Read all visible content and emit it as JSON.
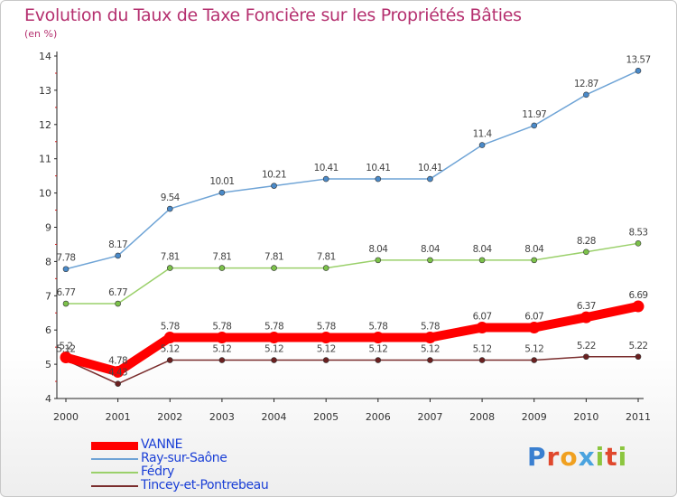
{
  "chart_data": {
    "type": "line",
    "title": "Evolution du Taux de Taxe Foncière sur les Propriétés Bâties",
    "subtitle": "(en %)",
    "xlabel": "",
    "ylabel": "",
    "x": [
      "2000",
      "2001",
      "2002",
      "2003",
      "2004",
      "2005",
      "2006",
      "2007",
      "2008",
      "2009",
      "2010",
      "2011"
    ],
    "ylim": [
      4,
      14
    ],
    "yticks": [
      4,
      5,
      6,
      7,
      8,
      9,
      10,
      11,
      12,
      13,
      14
    ],
    "grid": false,
    "legend_position": "bottom-left",
    "series": [
      {
        "name": "Ray-sur-Saône",
        "color": "#6fa4d6",
        "point_color": "#4a8ac9",
        "values": [
          7.78,
          8.17,
          9.54,
          10.01,
          10.21,
          10.41,
          10.41,
          10.41,
          11.4,
          11.97,
          12.87,
          13.57
        ],
        "labels": [
          "7.78",
          "8.17",
          "9.54",
          "10.01",
          "10.21",
          "10.41",
          "10.41",
          "10.41",
          "11.4",
          "11.97",
          "12.87",
          "13.57"
        ]
      },
      {
        "name": "Fédry",
        "color": "#9ad06a",
        "point_color": "#7cc24a",
        "values": [
          6.77,
          6.77,
          7.81,
          7.81,
          7.81,
          7.81,
          8.04,
          8.04,
          8.04,
          8.04,
          8.28,
          8.53
        ],
        "labels": [
          "6.77",
          "6.77",
          "7.81",
          "7.81",
          "7.81",
          "7.81",
          "8.04",
          "8.04",
          "8.04",
          "8.04",
          "8.28",
          "8.53"
        ]
      },
      {
        "name": "Tincey-et-Pontrebeau",
        "color": "#7a2d2d",
        "point_color": "#6b2020",
        "values": [
          5.12,
          4.43,
          5.12,
          5.12,
          5.12,
          5.12,
          5.12,
          5.12,
          5.12,
          5.12,
          5.22,
          5.22
        ],
        "labels": [
          "5.12",
          "4.43",
          "5.12",
          "5.12",
          "5.12",
          "5.12",
          "5.12",
          "5.12",
          "5.12",
          "5.12",
          "5.22",
          "5.22"
        ]
      },
      {
        "name": "VANNE",
        "color": "#ff0000",
        "point_color": "#ff0000",
        "thick": true,
        "values": [
          5.2,
          4.78,
          5.78,
          5.78,
          5.78,
          5.78,
          5.78,
          5.78,
          6.07,
          6.07,
          6.37,
          6.69
        ],
        "labels": [
          "5.2",
          "4.78",
          "5.78",
          "5.78",
          "5.78",
          "5.78",
          "5.78",
          "5.78",
          "6.07",
          "6.07",
          "6.37",
          "6.69"
        ]
      }
    ],
    "legend": [
      "VANNE",
      "Ray-sur-Saône",
      "Fédry",
      "Tincey-et-Pontrebeau"
    ]
  }
}
